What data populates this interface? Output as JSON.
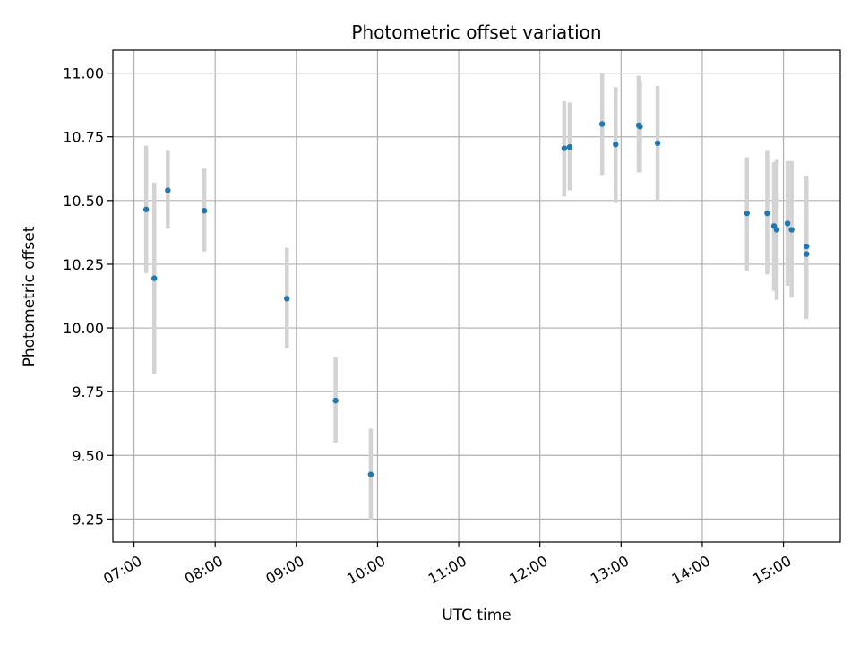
{
  "chart_data": {
    "type": "scatter",
    "title": "Photometric offset variation",
    "xlabel": "UTC time",
    "ylabel": "Photometric offset",
    "x_tick_labels": [
      "07:00",
      "08:00",
      "09:00",
      "10:00",
      "11:00",
      "12:00",
      "13:00",
      "14:00",
      "15:00"
    ],
    "y_tick_labels": [
      "9.25",
      "9.50",
      "9.75",
      "10.00",
      "10.25",
      "10.50",
      "10.75",
      "11.00"
    ],
    "x_ticks_hours": [
      7,
      8,
      9,
      10,
      11,
      12,
      13,
      14,
      15
    ],
    "y_ticks": [
      9.25,
      9.5,
      9.75,
      10.0,
      10.25,
      10.5,
      10.75,
      11.0
    ],
    "xlim_hours": [
      6.74,
      15.7
    ],
    "ylim": [
      9.16,
      11.09
    ],
    "grid": true,
    "point_color": "#1f77b4",
    "errorbar_color": "#d3d3d3",
    "points": [
      {
        "time": "07:09",
        "value": 10.465,
        "low": 10.215,
        "high": 10.715
      },
      {
        "time": "07:15",
        "value": 10.195,
        "low": 9.82,
        "high": 10.57
      },
      {
        "time": "07:25",
        "value": 10.54,
        "low": 10.39,
        "high": 10.695
      },
      {
        "time": "07:52",
        "value": 10.46,
        "low": 10.3,
        "high": 10.625
      },
      {
        "time": "08:53",
        "value": 10.115,
        "low": 9.92,
        "high": 10.315
      },
      {
        "time": "09:29",
        "value": 9.715,
        "low": 9.55,
        "high": 9.885
      },
      {
        "time": "09:55",
        "value": 9.425,
        "low": 9.245,
        "high": 9.605
      },
      {
        "time": "12:18",
        "value": 10.705,
        "low": 10.515,
        "high": 10.89
      },
      {
        "time": "12:22",
        "value": 10.71,
        "low": 10.54,
        "high": 10.885
      },
      {
        "time": "12:46",
        "value": 10.8,
        "low": 10.6,
        "high": 11.0
      },
      {
        "time": "12:56",
        "value": 10.72,
        "low": 10.49,
        "high": 10.945
      },
      {
        "time": "13:13",
        "value": 10.795,
        "low": 10.61,
        "high": 10.99
      },
      {
        "time": "13:14",
        "value": 10.79,
        "low": 10.61,
        "high": 10.97
      },
      {
        "time": "13:27",
        "value": 10.725,
        "low": 10.5,
        "high": 10.95
      },
      {
        "time": "14:33",
        "value": 10.45,
        "low": 10.225,
        "high": 10.67
      },
      {
        "time": "14:48",
        "value": 10.45,
        "low": 10.21,
        "high": 10.695
      },
      {
        "time": "14:53",
        "value": 10.4,
        "low": 10.145,
        "high": 10.65
      },
      {
        "time": "14:55",
        "value": 10.385,
        "low": 10.11,
        "high": 10.66
      },
      {
        "time": "15:03",
        "value": 10.41,
        "low": 10.165,
        "high": 10.655
      },
      {
        "time": "15:06",
        "value": 10.385,
        "low": 10.12,
        "high": 10.655
      },
      {
        "time": "15:17",
        "value": 10.32,
        "low": 10.045,
        "high": 10.595
      },
      {
        "time": "15:17",
        "value": 10.29,
        "low": 10.035,
        "high": 10.55
      }
    ]
  }
}
